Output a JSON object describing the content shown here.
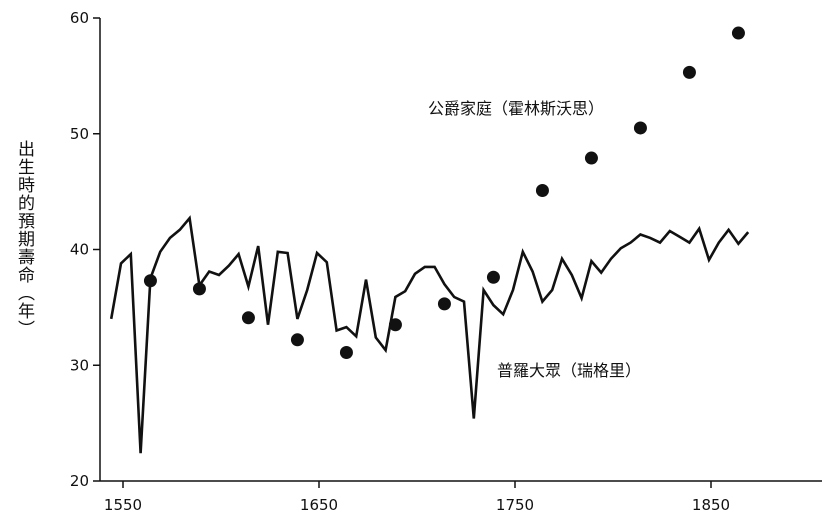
{
  "chart_data": {
    "type": "line",
    "ylabel": "出生時的預期壽命（年）",
    "xlabel": "",
    "xlim": [
      1540,
      1875
    ],
    "ylim": [
      20,
      60
    ],
    "x_ticks": [
      1550,
      1650,
      1750,
      1850
    ],
    "y_ticks": [
      20,
      30,
      40,
      50,
      60
    ],
    "annotations": [
      "公爵家庭（霍林斯沃思）",
      "普羅大眾（瑞格里）"
    ],
    "series": [
      {
        "name": "普羅大眾（瑞格里）",
        "kind": "line",
        "x": [
          1544,
          1549,
          1554,
          1559,
          1564,
          1569,
          1574,
          1579,
          1584,
          1589,
          1594,
          1599,
          1604,
          1609,
          1614,
          1619,
          1624,
          1629,
          1634,
          1639,
          1644,
          1649,
          1654,
          1659,
          1664,
          1669,
          1674,
          1679,
          1684,
          1689,
          1694,
          1699,
          1704,
          1709,
          1714,
          1719,
          1724,
          1729,
          1734,
          1739,
          1744,
          1749,
          1754,
          1759,
          1764,
          1769,
          1774,
          1779,
          1784,
          1789,
          1794,
          1799,
          1804,
          1809,
          1814,
          1819,
          1824,
          1829,
          1834,
          1839,
          1844,
          1849,
          1854,
          1859,
          1864,
          1869
        ],
        "y": [
          34,
          38.8,
          39.6,
          22.4,
          37.5,
          39.8,
          41,
          41.7,
          42.7,
          36.9,
          38.1,
          37.8,
          38.6,
          39.6,
          36.8,
          40.3,
          33.5,
          39.8,
          39.7,
          34,
          36.5,
          39.7,
          38.9,
          33,
          33.3,
          32.5,
          37.4,
          32.4,
          31.3,
          35.9,
          36.4,
          37.9,
          38.5,
          38.5,
          37,
          35.9,
          35.5,
          25.4,
          36.5,
          35.2,
          34.4,
          36.5,
          39.8,
          38.1,
          35.5,
          36.5,
          39.2,
          37.8,
          35.8,
          39,
          38,
          39.2,
          40.1,
          40.6,
          41.3,
          41,
          40.6,
          41.6,
          41.1,
          40.6,
          41.8,
          39.1,
          40.6,
          41.7,
          40.5,
          41.5
        ]
      },
      {
        "name": "公爵家庭（霍林斯沃思）",
        "kind": "scatter",
        "x": [
          1564,
          1589,
          1614,
          1639,
          1664,
          1689,
          1714,
          1739,
          1764,
          1789,
          1814,
          1839,
          1864
        ],
        "y": [
          37.3,
          36.6,
          34.1,
          32.2,
          31.1,
          33.5,
          35.3,
          37.6,
          45.1,
          47.9,
          50.5,
          55.3,
          58.7
        ]
      }
    ]
  }
}
